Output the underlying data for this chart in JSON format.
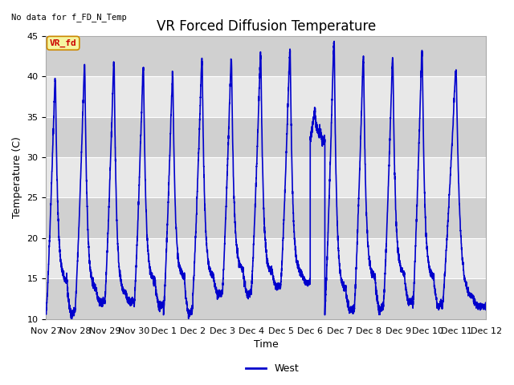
{
  "title": "VR Forced Diffusion Temperature",
  "no_data_label": "No data for f_FD_N_Temp",
  "ylabel": "Temperature (C)",
  "xlabel": "Time",
  "legend_label": "West",
  "line_color": "#0000cc",
  "line_width": 1.2,
  "ylim": [
    10,
    45
  ],
  "yticks": [
    10,
    15,
    20,
    25,
    30,
    35,
    40,
    45
  ],
  "background_color": "#ffffff",
  "plot_bg_color": "#d8d8d8",
  "grid_color": "#ffffff",
  "band_color_light": "#e8e8e8",
  "band_color_dark": "#d0d0d0",
  "annotation_text": "VR_fd",
  "annotation_color": "#cc0000",
  "annotation_bg": "#f5f5a0",
  "annotation_border": "#cc8800",
  "title_fontsize": 12,
  "label_fontsize": 9,
  "tick_fontsize": 8,
  "cycles": [
    {
      "start_day": 0.0,
      "min_val": 10.5,
      "peak": 39.5,
      "mid_val": 14.5
    },
    {
      "start_day": 1.0,
      "min_val": 12.0,
      "peak": 41.0,
      "mid_val": 13.5
    },
    {
      "start_day": 2.0,
      "min_val": 12.0,
      "peak": 41.5,
      "mid_val": 13.0
    },
    {
      "start_day": 3.0,
      "min_val": 11.5,
      "peak": 41.0,
      "mid_val": 14.5
    },
    {
      "start_day": 4.0,
      "min_val": 10.5,
      "peak": 40.0,
      "mid_val": 15.0
    },
    {
      "start_day": 5.0,
      "min_val": 13.0,
      "peak": 42.0,
      "mid_val": 15.0
    },
    {
      "start_day": 6.0,
      "min_val": 13.0,
      "peak": 42.0,
      "mid_val": 16.0
    },
    {
      "start_day": 7.0,
      "min_val": 14.0,
      "peak": 42.5,
      "mid_val": 15.5
    },
    {
      "start_day": 8.0,
      "min_val": 14.5,
      "peak": 43.0,
      "mid_val": 15.5
    },
    {
      "start_day": 9.0,
      "min_val": 32.0,
      "peak": 36.0,
      "mid_val": 33.0
    },
    {
      "start_day": 9.5,
      "min_val": 11.0,
      "peak": 44.0,
      "mid_val": 13.5
    },
    {
      "start_day": 10.5,
      "min_val": 11.0,
      "peak": 42.0,
      "mid_val": 15.0
    },
    {
      "start_day": 11.5,
      "min_val": 12.0,
      "peak": 42.0,
      "mid_val": 15.5
    },
    {
      "start_day": 12.5,
      "min_val": 11.5,
      "peak": 43.0,
      "mid_val": 15.0
    },
    {
      "start_day": 13.5,
      "min_val": 11.5,
      "peak": 40.5,
      "mid_val": 12.5
    }
  ],
  "x_tick_positions": [
    0,
    1,
    2,
    3,
    4,
    5,
    6,
    7,
    8,
    9,
    10,
    11,
    12,
    13,
    14,
    15
  ],
  "x_tick_labels": [
    "Nov 27",
    "Nov 28",
    "Nov 29",
    "Nov 30",
    "Dec 1",
    "Dec 2",
    "Dec 3",
    "Dec 4",
    "Dec 5",
    "Dec 6",
    "Dec 7",
    "Dec 8",
    "Dec 9",
    "Dec 10",
    "Dec 11",
    "Dec 12"
  ]
}
